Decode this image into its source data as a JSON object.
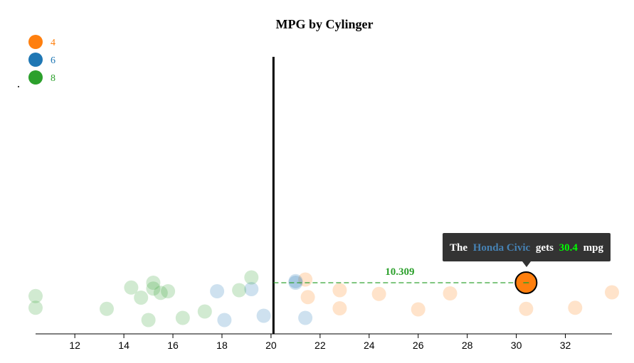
{
  "chart_data": {
    "type": "scatter",
    "title": "MPG by Cylinger",
    "xlabel": "",
    "ylabel": "",
    "xlim": [
      10.4,
      33.9
    ],
    "xticks": [
      12,
      14,
      16,
      18,
      20,
      22,
      24,
      26,
      28,
      30,
      32
    ],
    "reference_x": 20.1,
    "legend": [
      {
        "label": "4",
        "color": "#ff7f0e"
      },
      {
        "label": "6",
        "color": "#1f77b4"
      },
      {
        "label": "8",
        "color": "#2ca02c"
      }
    ],
    "legend_position": "top-left",
    "series": [
      {
        "name": "4",
        "color": "#ff7f0e",
        "points": [
          {
            "x": 21.4,
            "y": 0.62
          },
          {
            "x": 22.8,
            "y": 0.42
          },
          {
            "x": 24.4,
            "y": 0.35
          },
          {
            "x": 22.8,
            "y": 0.08
          },
          {
            "x": 21.5,
            "y": 0.29
          },
          {
            "x": 27.3,
            "y": 0.36
          },
          {
            "x": 26.0,
            "y": 0.06
          },
          {
            "x": 30.4,
            "y": 0.07
          },
          {
            "x": 32.4,
            "y": 0.09
          },
          {
            "x": 33.9,
            "y": 0.38
          },
          {
            "x": 30.4,
            "y": 0.5
          }
        ]
      },
      {
        "name": "6",
        "color": "#1f77b4",
        "points": [
          {
            "x": 21.0,
            "y": 0.59
          },
          {
            "x": 21.0,
            "y": 0.56
          },
          {
            "x": 21.4,
            "y": -0.1
          },
          {
            "x": 18.1,
            "y": -0.14
          },
          {
            "x": 19.2,
            "y": 0.44
          },
          {
            "x": 17.8,
            "y": 0.4
          },
          {
            "x": 19.7,
            "y": -0.06
          }
        ]
      },
      {
        "name": "8",
        "color": "#2ca02c",
        "points": [
          {
            "x": 18.7,
            "y": 0.42
          },
          {
            "x": 14.3,
            "y": 0.47
          },
          {
            "x": 16.4,
            "y": -0.1
          },
          {
            "x": 17.3,
            "y": 0.02
          },
          {
            "x": 15.2,
            "y": 0.56
          },
          {
            "x": 10.4,
            "y": 0.31
          },
          {
            "x": 10.4,
            "y": 0.09
          },
          {
            "x": 14.7,
            "y": 0.28
          },
          {
            "x": 15.5,
            "y": 0.37
          },
          {
            "x": 15.2,
            "y": 0.45
          },
          {
            "x": 13.3,
            "y": 0.07
          },
          {
            "x": 19.2,
            "y": 0.66
          },
          {
            "x": 15.8,
            "y": 0.4
          },
          {
            "x": 15.0,
            "y": -0.14
          }
        ]
      }
    ],
    "highlight": {
      "name": "Honda Civic",
      "x": 30.4,
      "cylinders": "4",
      "difference": "10.309"
    },
    "tooltip": {
      "prefix": "The",
      "car": "Honda Civic",
      "middle": "gets",
      "mpg": "30.4",
      "suffix": "mpg"
    }
  }
}
